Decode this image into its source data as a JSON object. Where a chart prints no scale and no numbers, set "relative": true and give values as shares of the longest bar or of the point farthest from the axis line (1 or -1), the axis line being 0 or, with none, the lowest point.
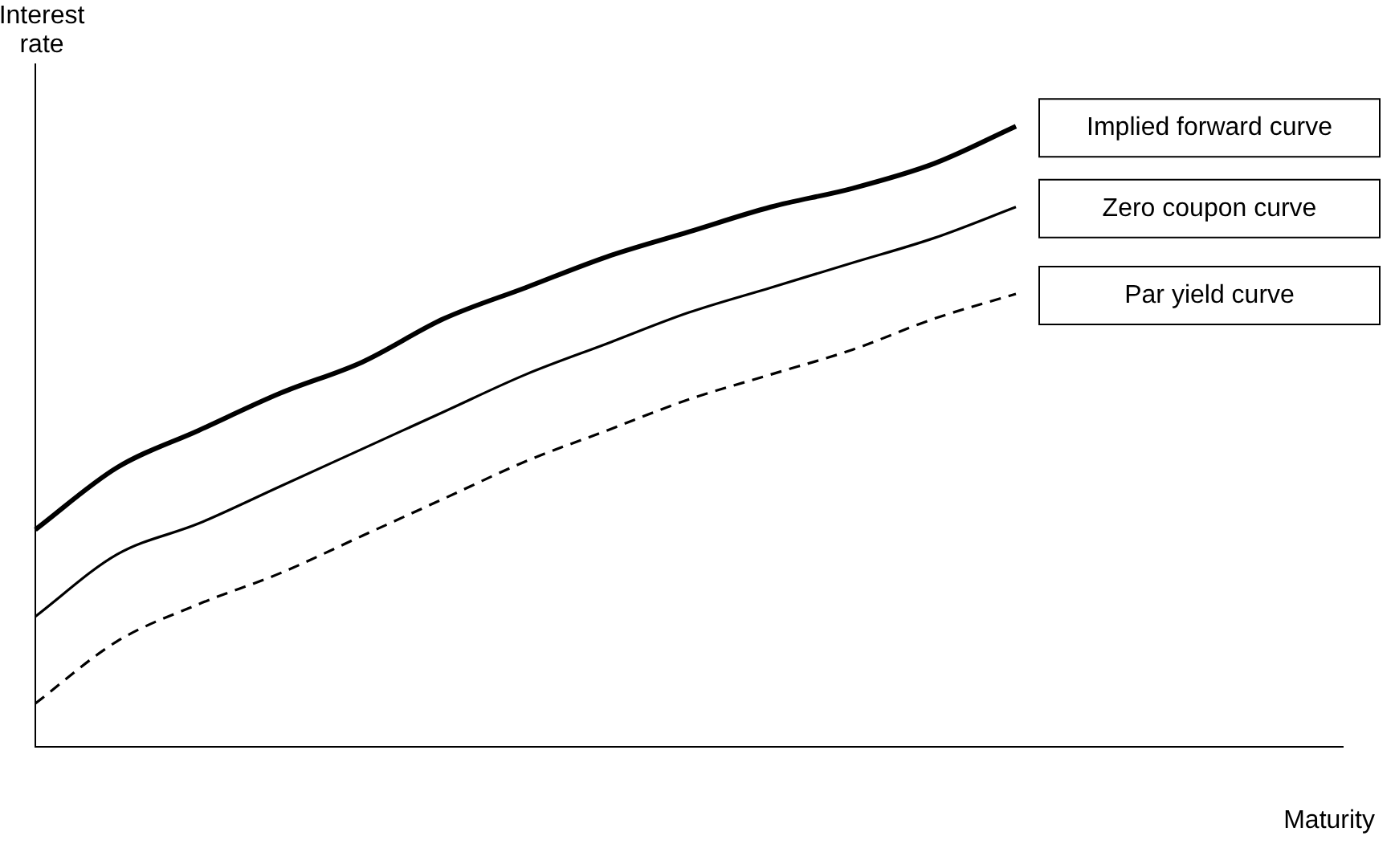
{
  "chart_data": {
    "type": "line",
    "relative": true,
    "xlabel": "Maturity",
    "ylabel": "Interest rate",
    "legend": false,
    "marker": "none",
    "categories": [
      null,
      null,
      null,
      null,
      null,
      null,
      null,
      null,
      null,
      null,
      null,
      null,
      null,
      null,
      null,
      null,
      null
    ],
    "series": [
      {
        "name": "Implied forward curve",
        "color": "#000000",
        "line_style": "solid",
        "values": [
          0.35,
          0.45,
          0.51,
          0.57,
          0.62,
          0.69,
          0.74,
          0.79,
          0.83,
          0.87,
          0.9,
          0.94,
          1.0,
          null,
          null,
          null,
          null
        ]
      },
      {
        "name": "Zero coupon curve",
        "color": "#000000",
        "line_style": "solid",
        "values": [
          0.21,
          0.31,
          0.36,
          0.42,
          0.48,
          0.54,
          0.6,
          0.65,
          0.7,
          0.74,
          0.78,
          0.82,
          0.87,
          null,
          null,
          null,
          null
        ]
      },
      {
        "name": "Par yield curve",
        "color": "#000000",
        "line_style": "dashed",
        "values": [
          0.07,
          0.17,
          0.23,
          0.28,
          0.34,
          0.4,
          0.46,
          0.51,
          0.56,
          0.6,
          0.64,
          0.69,
          0.73,
          null,
          null,
          null,
          null
        ]
      }
    ]
  }
}
